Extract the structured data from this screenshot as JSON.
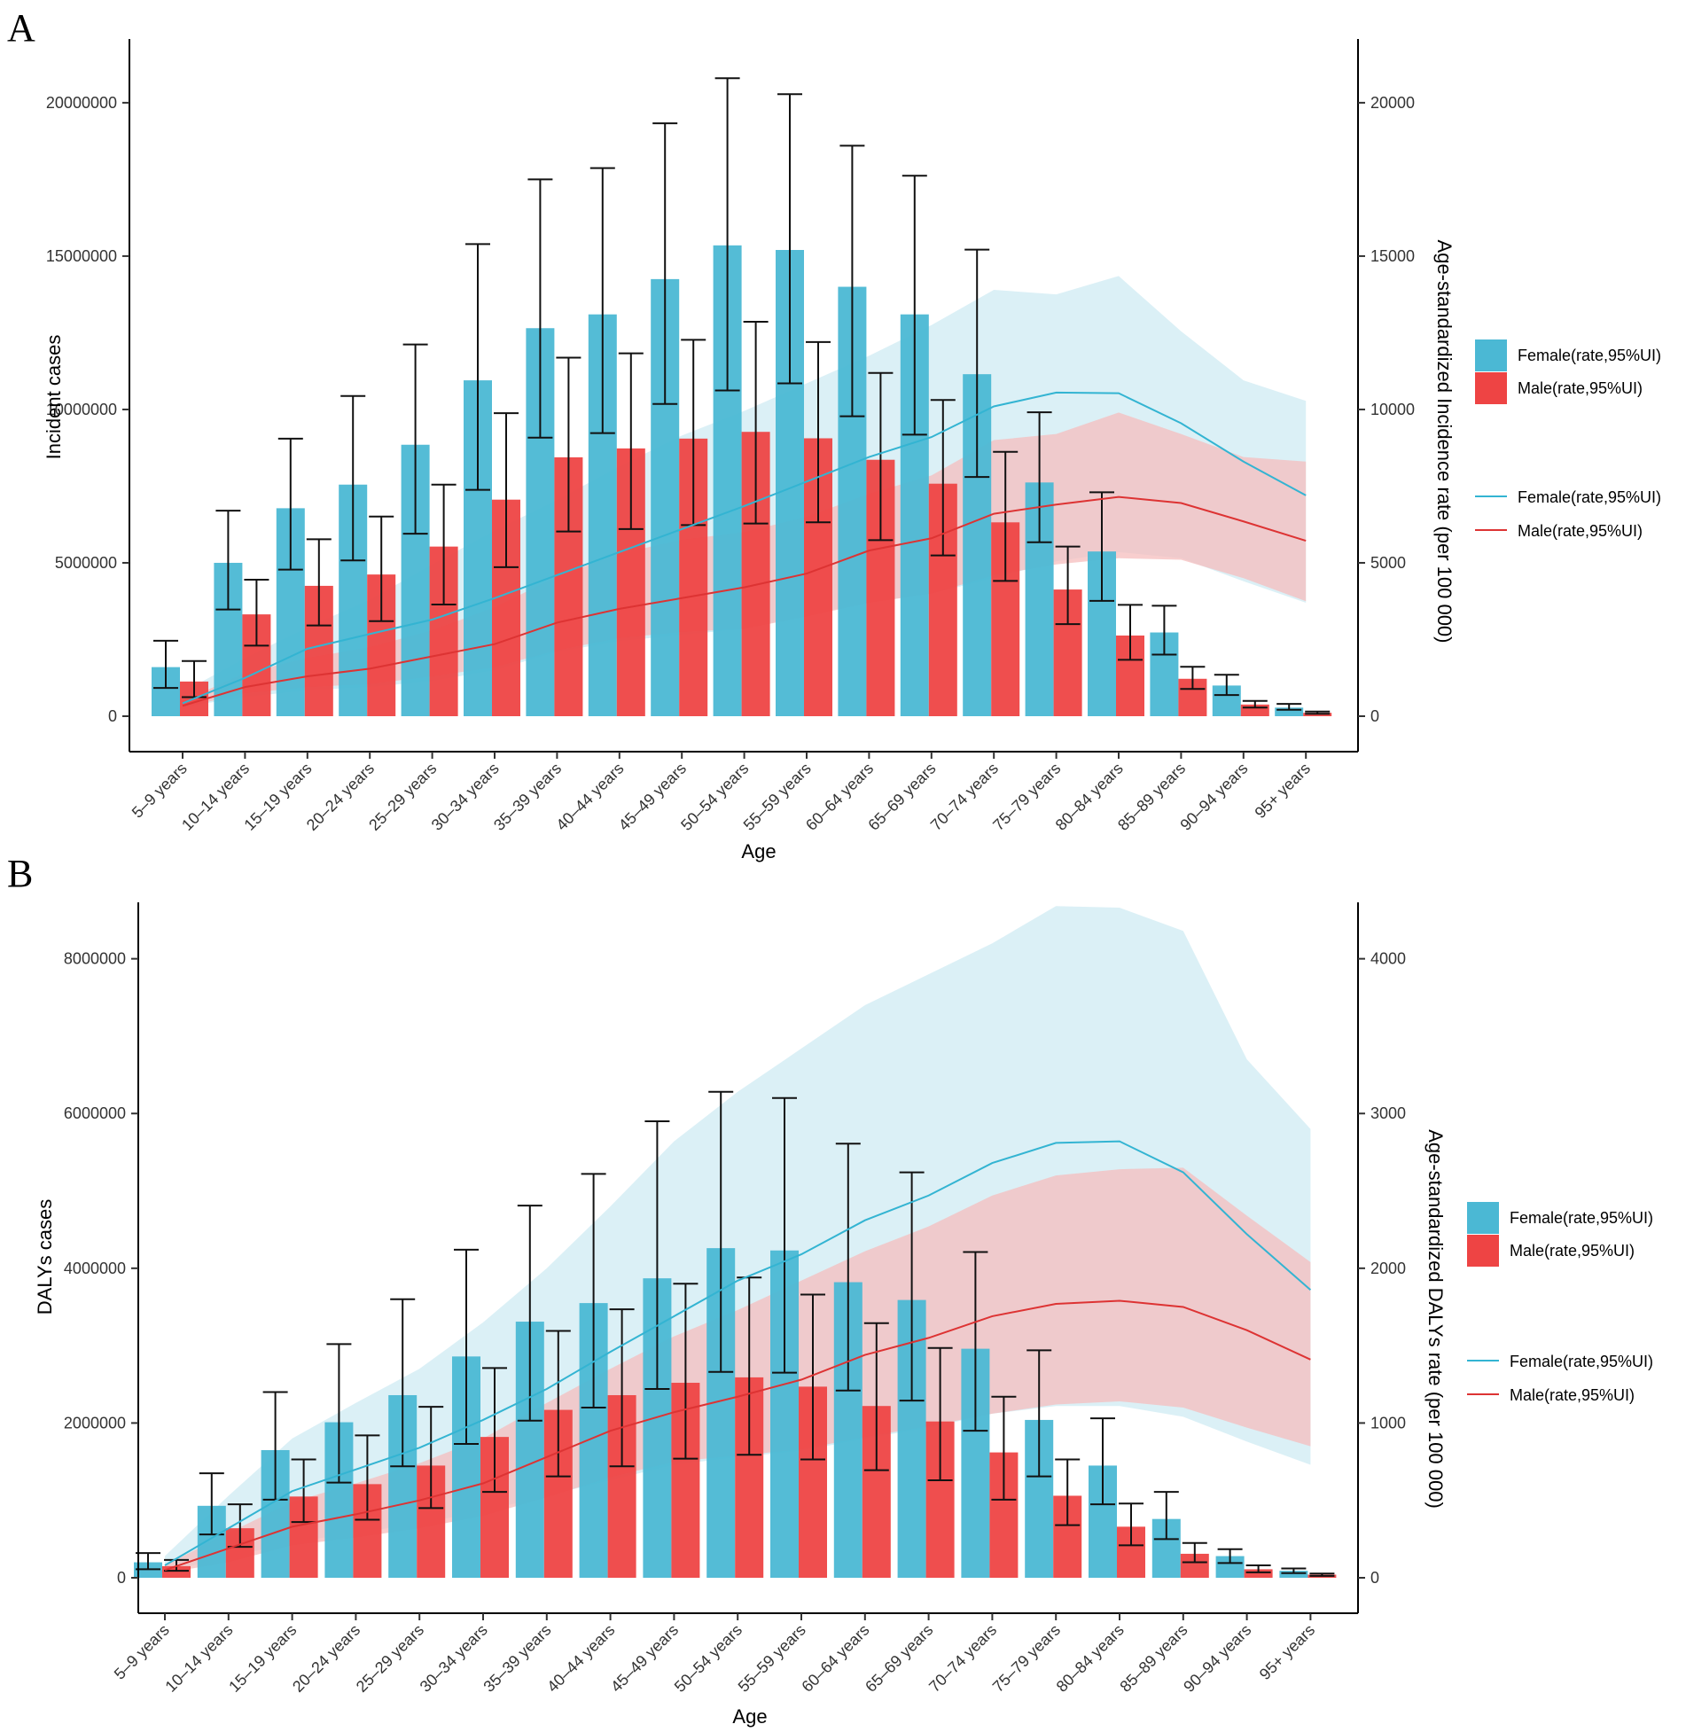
{
  "colors": {
    "female": "#4BB8D4",
    "male": "#EE4444",
    "female_line": "#33B4D2",
    "male_line": "#DD3333",
    "female_band": "#D2ECF4",
    "male_band": "#F6BDBD",
    "error_bar": "#111111"
  },
  "legend_labels": {
    "female_bar": "Female(rate,95%UI)",
    "male_bar": "Male(rate,95%UI)",
    "female_line": "Female(rate,95%UI)",
    "male_line": "Male(rate,95%UI)"
  },
  "chart_data": [
    {
      "panel": "A",
      "type": "bar",
      "xlabel": "Age",
      "ylabel": "Incident cases",
      "y2label": "Age-standardized Incidence rate (per 100 000)",
      "ylim": [
        0,
        21500000
      ],
      "y2lim": [
        0,
        21500
      ],
      "yticks": [
        0,
        5000000,
        10000000,
        15000000,
        20000000
      ],
      "y2ticks": [
        0,
        5000,
        10000,
        15000,
        20000
      ],
      "ytick_labels": [
        "0",
        "5000000",
        "10000000",
        "15000000",
        "20000000"
      ],
      "y2tick_labels": [
        "0",
        "5000",
        "10000",
        "15000",
        "20000"
      ],
      "categories": [
        "5–9 years",
        "10–14 years",
        "15–19 years",
        "20–24 years",
        "25–29 years",
        "30–34 years",
        "35–39 years",
        "40–44 years",
        "45–49 years",
        "50–54 years",
        "55–59 years",
        "60–64 years",
        "65–69 years",
        "70–74 years",
        "75–79 years",
        "80–84 years",
        "85–89 years",
        "90–94 years",
        "95+ years"
      ],
      "bars": [
        {
          "name": "Female",
          "values": [
            1600000,
            5000000,
            6780000,
            7550000,
            8850000,
            10950000,
            12650000,
            13100000,
            14250000,
            15350000,
            15200000,
            14000000,
            13100000,
            11150000,
            7620000,
            5370000,
            2730000,
            1000000,
            280000
          ],
          "lower": [
            920000,
            3480000,
            4780000,
            5080000,
            5950000,
            7380000,
            9080000,
            9230000,
            10180000,
            10620000,
            10850000,
            9780000,
            9180000,
            7800000,
            5670000,
            3760000,
            2010000,
            690000,
            210000
          ],
          "upper": [
            2460000,
            6700000,
            9050000,
            10440000,
            12120000,
            15390000,
            17500000,
            17870000,
            19330000,
            20800000,
            20280000,
            18600000,
            17620000,
            15210000,
            9910000,
            7300000,
            3600000,
            1350000,
            400000
          ]
        },
        {
          "name": "Male",
          "values": [
            1130000,
            3320000,
            4250000,
            4620000,
            5530000,
            7060000,
            8440000,
            8730000,
            9050000,
            9270000,
            9060000,
            8360000,
            7580000,
            6320000,
            4130000,
            2630000,
            1220000,
            380000,
            110000
          ],
          "lower": [
            620000,
            2300000,
            2960000,
            3100000,
            3640000,
            4860000,
            6020000,
            6100000,
            6230000,
            6280000,
            6320000,
            5740000,
            5240000,
            4410000,
            3000000,
            1840000,
            890000,
            280000,
            80000
          ],
          "upper": [
            1800000,
            4450000,
            5770000,
            6510000,
            7550000,
            9880000,
            11690000,
            11830000,
            12270000,
            12860000,
            12200000,
            11190000,
            10310000,
            8620000,
            5530000,
            3630000,
            1610000,
            500000,
            150000
          ]
        }
      ],
      "lines": [
        {
          "name": "Female",
          "values": [
            420,
            1250,
            2200,
            2680,
            3150,
            3850,
            4600,
            5350,
            6100,
            6850,
            7650,
            8450,
            9100,
            10100,
            10550,
            10530,
            9550,
            8300,
            7200
          ],
          "lower": [
            300,
            620,
            850,
            950,
            1150,
            1500,
            2100,
            2450,
            2650,
            2850,
            3300,
            3700,
            4000,
            4500,
            5050,
            5350,
            5150,
            4400,
            3700
          ],
          "upper": [
            780,
            1900,
            2900,
            3800,
            4950,
            6050,
            7050,
            8150,
            9150,
            9950,
            10850,
            11750,
            12750,
            13900,
            13750,
            14350,
            12550,
            10950,
            10280
          ]
        },
        {
          "name": "Male",
          "values": [
            340,
            950,
            1300,
            1550,
            1950,
            2350,
            3050,
            3500,
            3850,
            4200,
            4650,
            5400,
            5800,
            6600,
            6900,
            7150,
            6950,
            6350,
            5720
          ],
          "lower": [
            280,
            750,
            950,
            1050,
            1300,
            1600,
            2150,
            2550,
            2750,
            2850,
            3250,
            3700,
            4000,
            4600,
            4950,
            5150,
            5100,
            4500,
            3750
          ],
          "upper": [
            500,
            1400,
            1900,
            2250,
            2800,
            3550,
            4550,
            5300,
            5750,
            6000,
            6500,
            7250,
            7850,
            9000,
            9200,
            9900,
            9200,
            8450,
            8300
          ]
        }
      ]
    },
    {
      "panel": "B",
      "type": "bar",
      "xlabel": "Age",
      "ylabel": "DALYs cases",
      "y2label": "Age-standardized DALYs rate (per 100 000)",
      "ylim": [
        0,
        8500000
      ],
      "y2lim": [
        0,
        4250
      ],
      "yticks": [
        0,
        2000000,
        4000000,
        6000000,
        8000000
      ],
      "y2ticks": [
        0,
        1000,
        2000,
        3000,
        4000
      ],
      "ytick_labels": [
        "0",
        "2000000",
        "4000000",
        "6000000",
        "8000000"
      ],
      "y2tick_labels": [
        "0",
        "1000",
        "2000",
        "3000",
        "4000"
      ],
      "categories": [
        "5–9 years",
        "10–14 years",
        "15–19 years",
        "20–24 years",
        "25–29 years",
        "30–34 years",
        "35–39 years",
        "40–44 years",
        "45–49 years",
        "50–54 years",
        "55–59 years",
        "60–64 years",
        "65–69 years",
        "70–74 years",
        "75–79 years",
        "80–84 years",
        "85–89 years",
        "90–94 years",
        "95+ years"
      ],
      "bars": [
        {
          "name": "Female",
          "values": [
            200000,
            930000,
            1650000,
            2010000,
            2360000,
            2860000,
            3310000,
            3550000,
            3870000,
            4260000,
            4230000,
            3820000,
            3590000,
            2960000,
            2040000,
            1450000,
            760000,
            280000,
            90000
          ],
          "lower": [
            110000,
            560000,
            1010000,
            1230000,
            1440000,
            1730000,
            2030000,
            2200000,
            2440000,
            2660000,
            2650000,
            2420000,
            2290000,
            1900000,
            1310000,
            950000,
            500000,
            190000,
            60000
          ],
          "upper": [
            320000,
            1350000,
            2400000,
            3020000,
            3600000,
            4240000,
            4810000,
            5220000,
            5900000,
            6280000,
            6200000,
            5610000,
            5240000,
            4210000,
            2940000,
            2060000,
            1110000,
            370000,
            120000
          ]
        },
        {
          "name": "Male",
          "values": [
            150000,
            640000,
            1050000,
            1210000,
            1450000,
            1820000,
            2170000,
            2360000,
            2520000,
            2590000,
            2470000,
            2220000,
            2020000,
            1620000,
            1060000,
            660000,
            310000,
            110000,
            40000
          ],
          "lower": [
            90000,
            400000,
            720000,
            750000,
            900000,
            1110000,
            1310000,
            1440000,
            1540000,
            1590000,
            1530000,
            1390000,
            1260000,
            1010000,
            680000,
            420000,
            200000,
            70000,
            25000
          ],
          "upper": [
            230000,
            950000,
            1530000,
            1840000,
            2210000,
            2710000,
            3190000,
            3470000,
            3800000,
            3880000,
            3660000,
            3290000,
            2970000,
            2340000,
            1530000,
            960000,
            450000,
            160000,
            55000
          ]
        }
      ],
      "lines": [
        {
          "name": "Female",
          "values": [
            80,
            320,
            560,
            700,
            840,
            1020,
            1220,
            1460,
            1690,
            1920,
            2090,
            2310,
            2470,
            2680,
            2810,
            2820,
            2620,
            2220,
            1860
          ],
          "lower": [
            40,
            130,
            230,
            290,
            350,
            430,
            530,
            630,
            730,
            780,
            820,
            900,
            970,
            1060,
            1110,
            1110,
            1040,
            880,
            730
          ],
          "upper": [
            140,
            530,
            900,
            1130,
            1350,
            1650,
            2000,
            2400,
            2820,
            3140,
            3420,
            3700,
            3900,
            4100,
            4340,
            4330,
            4180,
            3350,
            2900
          ]
        },
        {
          "name": "Male",
          "values": [
            50,
            190,
            330,
            410,
            500,
            610,
            780,
            950,
            1070,
            1170,
            1280,
            1440,
            1550,
            1690,
            1770,
            1790,
            1750,
            1600,
            1410
          ]
        },
        {
          "name": "MaleBand",
          "values": [],
          "lower": [
            30,
            100,
            210,
            260,
            320,
            400,
            520,
            650,
            750,
            790,
            830,
            910,
            980,
            1060,
            1120,
            1140,
            1100,
            970,
            850
          ],
          "upper": [
            80,
            290,
            490,
            610,
            740,
            900,
            1130,
            1350,
            1560,
            1730,
            1920,
            2110,
            2270,
            2470,
            2600,
            2640,
            2650,
            2340,
            2040
          ]
        }
      ]
    }
  ]
}
